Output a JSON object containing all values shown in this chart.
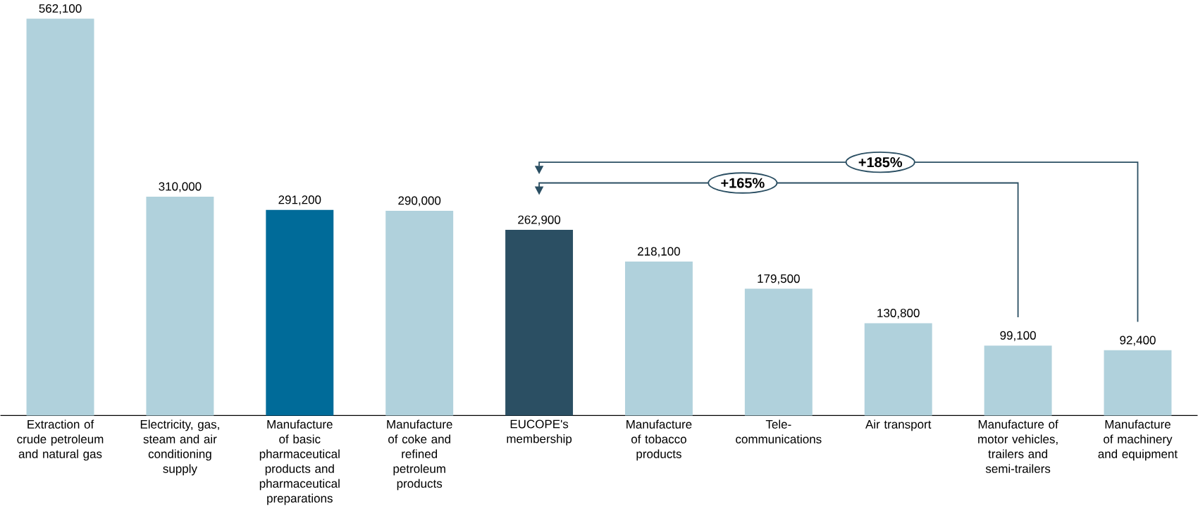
{
  "chart_data": {
    "type": "bar",
    "categories": [
      "Extraction of crude petroleum and natural gas",
      "Electricity, gas, steam and air conditioning supply",
      "Manufacture of basic pharmaceutical products and pharmaceutical preparations",
      "Manufacture of coke and refined petroleum products",
      "EUCOPE's membership",
      "Manufacture of tobacco products",
      "Tele-communications",
      "Air transport",
      "Manufacture of motor vehicles, trailers and semi-trailers",
      "Manufacture of machinery and equipment"
    ],
    "values": [
      562100,
      310000,
      291200,
      290000,
      262900,
      218100,
      179500,
      130800,
      99100,
      92400
    ],
    "value_labels": [
      "562,100",
      "310,000",
      "291,200",
      "290,000",
      "262,900",
      "218,100",
      "179,500",
      "130,800",
      "99,100",
      "92,400"
    ],
    "colors": [
      "#b0d1dc",
      "#b0d1dc",
      "#006b99",
      "#b0d1dc",
      "#2b4f63",
      "#b0d1dc",
      "#b0d1dc",
      "#b0d1dc",
      "#b0d1dc",
      "#b0d1dc"
    ],
    "tick_labels": "x",
    "annotations": [
      "+185%",
      "+165%"
    ]
  }
}
